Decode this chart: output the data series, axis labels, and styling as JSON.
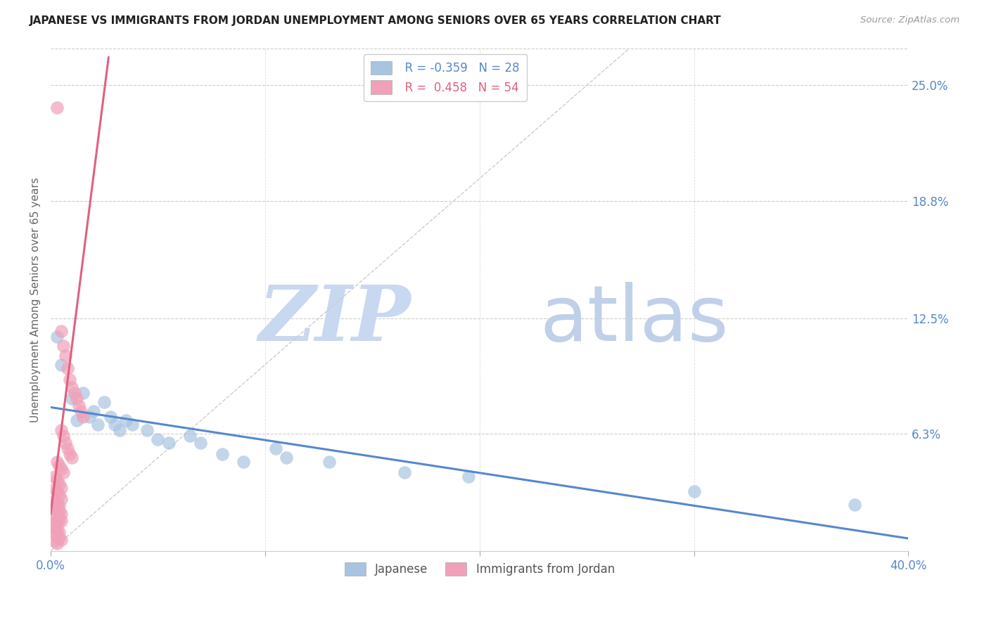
{
  "title": "JAPANESE VS IMMIGRANTS FROM JORDAN UNEMPLOYMENT AMONG SENIORS OVER 65 YEARS CORRELATION CHART",
  "source": "Source: ZipAtlas.com",
  "ylabel": "Unemployment Among Seniors over 65 years",
  "right_yticks": [
    "25.0%",
    "18.8%",
    "12.5%",
    "6.3%"
  ],
  "right_ytick_vals": [
    0.25,
    0.188,
    0.125,
    0.063
  ],
  "background_color": "#ffffff",
  "legend_r_japanese": "-0.359",
  "legend_n_japanese": "28",
  "legend_r_jordan": "0.458",
  "legend_n_jordan": "54",
  "japanese_color": "#a8c4e0",
  "jordan_color": "#f0a0b8",
  "japanese_line_color": "#5588cc",
  "jordan_line_color": "#e06080",
  "diagonal_line_color": "#cccccc",
  "title_color": "#222222",
  "source_color": "#999999",
  "axis_label_color": "#5588cc",
  "right_tick_color": "#5588cc",
  "japanese_scatter": [
    [
      0.003,
      0.115
    ],
    [
      0.005,
      0.1
    ],
    [
      0.01,
      0.082
    ],
    [
      0.012,
      0.07
    ],
    [
      0.015,
      0.085
    ],
    [
      0.018,
      0.072
    ],
    [
      0.02,
      0.075
    ],
    [
      0.022,
      0.068
    ],
    [
      0.025,
      0.08
    ],
    [
      0.028,
      0.072
    ],
    [
      0.03,
      0.068
    ],
    [
      0.032,
      0.065
    ],
    [
      0.035,
      0.07
    ],
    [
      0.038,
      0.068
    ],
    [
      0.045,
      0.065
    ],
    [
      0.05,
      0.06
    ],
    [
      0.055,
      0.058
    ],
    [
      0.065,
      0.062
    ],
    [
      0.07,
      0.058
    ],
    [
      0.08,
      0.052
    ],
    [
      0.09,
      0.048
    ],
    [
      0.105,
      0.055
    ],
    [
      0.11,
      0.05
    ],
    [
      0.13,
      0.048
    ],
    [
      0.165,
      0.042
    ],
    [
      0.195,
      0.04
    ],
    [
      0.3,
      0.032
    ],
    [
      0.375,
      0.025
    ]
  ],
  "jordan_scatter": [
    [
      0.003,
      0.238
    ],
    [
      0.005,
      0.118
    ],
    [
      0.006,
      0.11
    ],
    [
      0.007,
      0.105
    ],
    [
      0.008,
      0.098
    ],
    [
      0.009,
      0.092
    ],
    [
      0.01,
      0.088
    ],
    [
      0.011,
      0.085
    ],
    [
      0.012,
      0.082
    ],
    [
      0.013,
      0.078
    ],
    [
      0.014,
      0.075
    ],
    [
      0.015,
      0.072
    ],
    [
      0.005,
      0.065
    ],
    [
      0.006,
      0.062
    ],
    [
      0.007,
      0.058
    ],
    [
      0.008,
      0.055
    ],
    [
      0.009,
      0.052
    ],
    [
      0.01,
      0.05
    ],
    [
      0.003,
      0.048
    ],
    [
      0.004,
      0.046
    ],
    [
      0.005,
      0.044
    ],
    [
      0.006,
      0.042
    ],
    [
      0.002,
      0.04
    ],
    [
      0.003,
      0.038
    ],
    [
      0.004,
      0.036
    ],
    [
      0.005,
      0.034
    ],
    [
      0.002,
      0.033
    ],
    [
      0.003,
      0.032
    ],
    [
      0.004,
      0.03
    ],
    [
      0.005,
      0.028
    ],
    [
      0.002,
      0.027
    ],
    [
      0.003,
      0.026
    ],
    [
      0.003,
      0.025
    ],
    [
      0.004,
      0.024
    ],
    [
      0.002,
      0.023
    ],
    [
      0.003,
      0.022
    ],
    [
      0.004,
      0.021
    ],
    [
      0.005,
      0.02
    ],
    [
      0.002,
      0.019
    ],
    [
      0.003,
      0.018
    ],
    [
      0.004,
      0.017
    ],
    [
      0.005,
      0.016
    ],
    [
      0.002,
      0.015
    ],
    [
      0.003,
      0.014
    ],
    [
      0.001,
      0.013
    ],
    [
      0.002,
      0.012
    ],
    [
      0.003,
      0.011
    ],
    [
      0.004,
      0.01
    ],
    [
      0.002,
      0.009
    ],
    [
      0.003,
      0.008
    ],
    [
      0.004,
      0.007
    ],
    [
      0.005,
      0.006
    ],
    [
      0.002,
      0.005
    ],
    [
      0.003,
      0.004
    ]
  ],
  "xlim": [
    0.0,
    0.4
  ],
  "ylim": [
    0.0,
    0.27
  ],
  "watermark_zip_color": "#c8d8f0",
  "watermark_atlas_color": "#c0d0e8",
  "watermark_fontsize": 80
}
